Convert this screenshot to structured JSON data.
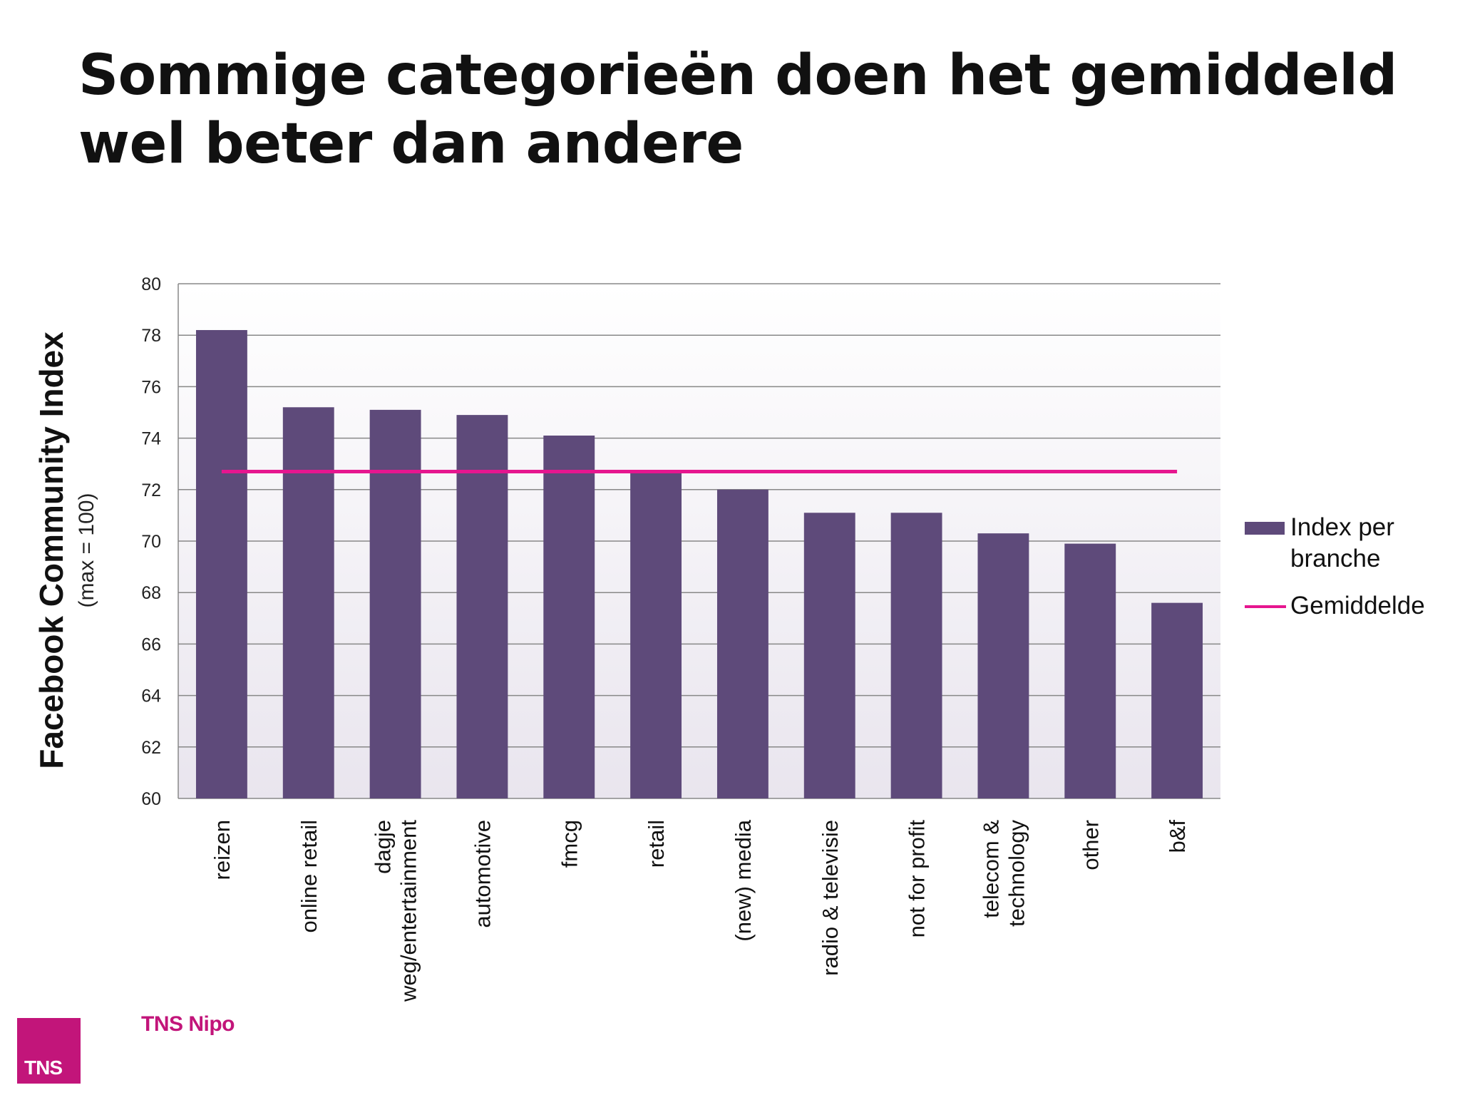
{
  "slide": {
    "title": "Sommige categorieën doen het gemiddeld wel beter dan andere"
  },
  "colors": {
    "bar": "#5e4a7a",
    "average_line": "#e6168f",
    "brand": "#c2157a",
    "gridline": "#888888",
    "plot_background_top": "#ffffff",
    "plot_background_bottom": "#e9e5ee"
  },
  "chart_data": {
    "type": "bar",
    "title": "",
    "ylabel": "Facebook Community Index",
    "ylabel_sub": "(max = 100)",
    "xlabel": "",
    "ylim": [
      60,
      80
    ],
    "y_ticks": [
      60,
      62,
      64,
      66,
      68,
      70,
      72,
      74,
      76,
      78,
      80
    ],
    "grid": true,
    "legend_position": "right",
    "categories": [
      [
        "reizen"
      ],
      [
        "online retail"
      ],
      [
        "dagje",
        "weg/entertainment"
      ],
      [
        "automotive"
      ],
      [
        "fmcg"
      ],
      [
        "retail"
      ],
      [
        "(new) media"
      ],
      [
        "radio & televisie"
      ],
      [
        "not for profit"
      ],
      [
        "telecom &",
        "technology"
      ],
      [
        "other"
      ],
      [
        "b&f"
      ]
    ],
    "series": [
      {
        "name": "Index per branche",
        "type": "bar",
        "values": [
          78.2,
          75.2,
          75.1,
          74.9,
          74.1,
          72.7,
          72.0,
          71.1,
          71.1,
          70.3,
          69.9,
          67.6
        ]
      },
      {
        "name": "Gemiddelde",
        "type": "line",
        "value": 72.7
      }
    ]
  },
  "legend": {
    "bar_label": "Index per branche",
    "line_label": "Gemiddelde"
  },
  "logo": {
    "box_text": "TNS",
    "wordmark": "TNS Nipo"
  }
}
